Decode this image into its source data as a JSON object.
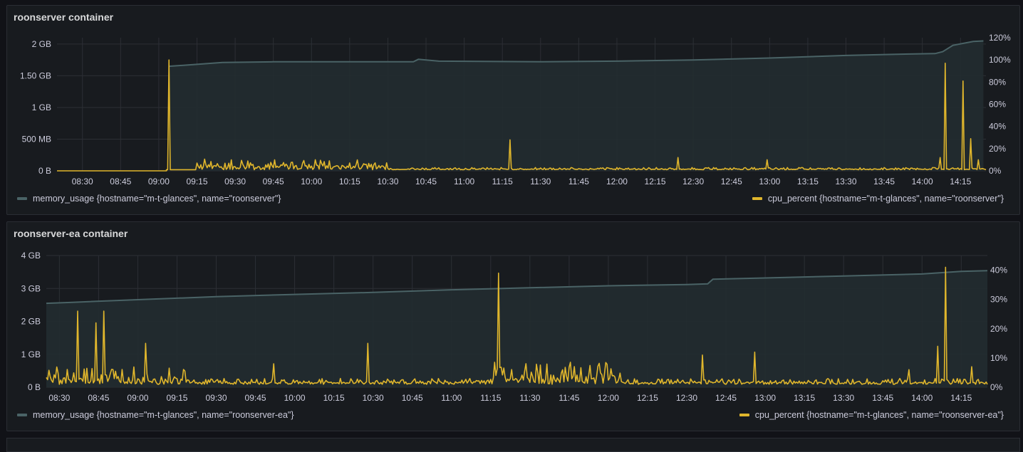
{
  "panels": [
    {
      "title": "roonserver container",
      "legend_memory": "memory_usage {hostname=\"m-t-glances\", name=\"roonserver\"}",
      "legend_cpu": "cpu_percent {hostname=\"m-t-glances\", name=\"roonserver\"}"
    },
    {
      "title": "roonserver-ea container",
      "legend_memory": "memory_usage {hostname=\"m-t-glances\", name=\"roonserver-ea\"}",
      "legend_cpu": "cpu_percent {hostname=\"m-t-glances\", name=\"roonserver-ea\"}"
    }
  ],
  "colors": {
    "background": "#111217",
    "panel": "#181b1f",
    "grid": "#2c2f35",
    "memory_line": "#4a6366",
    "memory_fill": "#222c30",
    "cpu_line": "#e0b62c",
    "text": "#ccccdc"
  },
  "chart_data": [
    {
      "type": "line",
      "title": "roonserver container",
      "x_start": "08:20",
      "x_end": "14:25",
      "x_ticks": [
        "08:30",
        "08:45",
        "09:00",
        "09:15",
        "09:30",
        "09:45",
        "10:00",
        "10:15",
        "10:30",
        "10:45",
        "11:00",
        "11:15",
        "11:30",
        "11:45",
        "12:00",
        "12:15",
        "12:30",
        "12:45",
        "13:00",
        "13:15",
        "13:30",
        "13:45",
        "14:00",
        "14:15"
      ],
      "y_left": {
        "unit": "GB",
        "ylim": [
          0,
          2.1
        ],
        "ticks": [
          0,
          0.5,
          1,
          1.5,
          2
        ],
        "tick_labels": [
          "0 B",
          "500 MB",
          "1 GB",
          "1.50 GB",
          "2 GB"
        ]
      },
      "y_right": {
        "unit": "%",
        "ylim": [
          0,
          120
        ],
        "ticks": [
          0,
          20,
          40,
          60,
          80,
          100,
          120
        ],
        "tick_labels": [
          "0%",
          "20%",
          "40%",
          "60%",
          "80%",
          "100%",
          "120%"
        ]
      },
      "series": [
        {
          "name": "memory_usage {hostname=\"m-t-glances\", name=\"roonserver\"}",
          "axis": "left",
          "area": true,
          "points": [
            [
              "09:04",
              1.65
            ],
            [
              "09:15",
              1.68
            ],
            [
              "09:25",
              1.71
            ],
            [
              "09:45",
              1.72
            ],
            [
              "10:15",
              1.72
            ],
            [
              "10:40",
              1.72
            ],
            [
              "10:42",
              1.76
            ],
            [
              "10:50",
              1.73
            ],
            [
              "11:30",
              1.72
            ],
            [
              "12:00",
              1.73
            ],
            [
              "12:30",
              1.75
            ],
            [
              "13:00",
              1.78
            ],
            [
              "13:30",
              1.82
            ],
            [
              "13:50",
              1.84
            ],
            [
              "14:05",
              1.85
            ],
            [
              "14:08",
              1.88
            ],
            [
              "14:12",
              1.98
            ],
            [
              "14:20",
              2.04
            ],
            [
              "14:24",
              2.05
            ]
          ]
        },
        {
          "name": "cpu_percent {hostname=\"m-t-glances\", name=\"roonserver\"}",
          "axis": "right",
          "area": false,
          "baseline": 1,
          "active_from": "09:03",
          "noise_regions": [
            {
              "from": "09:15",
              "to": "10:30",
              "amplitude": 10
            },
            {
              "from": "10:30",
              "to": "14:25",
              "amplitude": 2
            }
          ],
          "spikes": [
            [
              "09:04",
              100
            ],
            [
              "11:18",
              28
            ],
            [
              "12:24",
              12
            ],
            [
              "12:59",
              10
            ],
            [
              "14:07",
              12
            ],
            [
              "14:09",
              97
            ],
            [
              "14:16",
              81
            ],
            [
              "14:19",
              29
            ],
            [
              "14:22",
              10
            ]
          ]
        }
      ]
    },
    {
      "type": "line",
      "title": "roonserver-ea container",
      "x_start": "08:25",
      "x_end": "14:25",
      "x_ticks": [
        "08:30",
        "08:45",
        "09:00",
        "09:15",
        "09:30",
        "09:45",
        "10:00",
        "10:15",
        "10:30",
        "10:45",
        "11:00",
        "11:15",
        "11:30",
        "11:45",
        "12:00",
        "12:15",
        "12:30",
        "12:45",
        "13:00",
        "13:15",
        "13:30",
        "13:45",
        "14:00",
        "14:15"
      ],
      "y_left": {
        "unit": "GB",
        "ylim": [
          0,
          4
        ],
        "ticks": [
          0,
          1,
          2,
          3,
          4
        ],
        "tick_labels": [
          "0 B",
          "1 GB",
          "2 GB",
          "3 GB",
          "4 GB"
        ]
      },
      "y_right": {
        "unit": "%",
        "ylim": [
          0,
          45
        ],
        "ticks": [
          0,
          10,
          20,
          30,
          40
        ],
        "tick_labels": [
          "0%",
          "10%",
          "20%",
          "30%",
          "40%"
        ]
      },
      "series": [
        {
          "name": "memory_usage {hostname=\"m-t-glances\", name=\"roonserver-ea\"}",
          "axis": "left",
          "area": true,
          "points": [
            [
              "08:25",
              2.55
            ],
            [
              "08:35",
              2.58
            ],
            [
              "09:00",
              2.66
            ],
            [
              "09:30",
              2.75
            ],
            [
              "10:00",
              2.82
            ],
            [
              "10:30",
              2.88
            ],
            [
              "11:00",
              2.96
            ],
            [
              "11:30",
              3.02
            ],
            [
              "12:00",
              3.08
            ],
            [
              "12:30",
              3.12
            ],
            [
              "12:38",
              3.14
            ],
            [
              "12:40",
              3.28
            ],
            [
              "13:00",
              3.32
            ],
            [
              "13:30",
              3.38
            ],
            [
              "14:00",
              3.44
            ],
            [
              "14:15",
              3.52
            ],
            [
              "14:25",
              3.54
            ]
          ]
        },
        {
          "name": "cpu_percent {hostname=\"m-t-glances\", name=\"roonserver-ea\"}",
          "axis": "right",
          "area": false,
          "baseline": 1,
          "active_from": "08:25",
          "noise_regions": [
            {
              "from": "08:25",
              "to": "09:20",
              "amplitude": 6
            },
            {
              "from": "09:20",
              "to": "11:15",
              "amplitude": 2
            },
            {
              "from": "11:15",
              "to": "12:05",
              "amplitude": 8
            },
            {
              "from": "12:05",
              "to": "14:25",
              "amplitude": 2
            }
          ],
          "spikes": [
            [
              "08:37",
              26
            ],
            [
              "08:44",
              22
            ],
            [
              "08:47",
              26
            ],
            [
              "09:03",
              15
            ],
            [
              "09:52",
              8
            ],
            [
              "10:28",
              15
            ],
            [
              "11:18",
              39
            ],
            [
              "12:36",
              11
            ],
            [
              "12:56",
              12
            ],
            [
              "13:55",
              6
            ],
            [
              "14:06",
              14
            ],
            [
              "14:09",
              41
            ],
            [
              "14:19",
              7
            ]
          ]
        }
      ]
    }
  ]
}
